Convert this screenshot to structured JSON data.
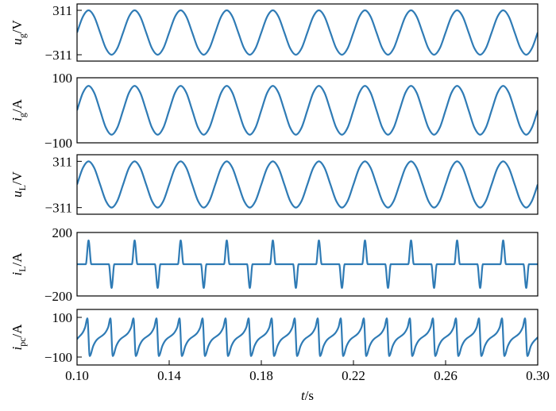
{
  "chart_data": [
    {
      "type": "line",
      "color": "#2f7bb5",
      "ylabel": {
        "symbol": "u",
        "subscript": "g",
        "unit": "/V"
      },
      "xlim": [
        0.1,
        0.3
      ],
      "ylim": [
        -400,
        400
      ],
      "yticks": [
        311,
        {
          "value": -311,
          "label": "−311"
        }
      ],
      "x": [
        0.1,
        0.1025,
        0.105,
        0.1075,
        0.11,
        0.1125,
        0.115,
        0.1175,
        0.12,
        0.1225,
        0.125,
        0.1275,
        0.13,
        0.1325,
        0.135,
        0.1375,
        0.14,
        0.1425,
        0.145,
        0.1475,
        0.15,
        0.1525,
        0.155,
        0.1575,
        0.16,
        0.1625,
        0.165,
        0.1675,
        0.17,
        0.1725,
        0.175,
        0.1775,
        0.18,
        0.1825,
        0.185,
        0.1875,
        0.19,
        0.1925,
        0.195,
        0.1975,
        0.2,
        0.2025,
        0.205,
        0.2075,
        0.21,
        0.2125,
        0.215,
        0.2175,
        0.22,
        0.2225,
        0.225,
        0.2275,
        0.23,
        0.2325,
        0.235,
        0.2375,
        0.24,
        0.2425,
        0.245,
        0.2475,
        0.25,
        0.2525,
        0.255,
        0.2575,
        0.26,
        0.2625,
        0.265,
        0.2675,
        0.27,
        0.2725,
        0.275,
        0.2775,
        0.28,
        0.2825,
        0.285,
        0.2875,
        0.29,
        0.2925,
        0.295,
        0.2975,
        0.3
      ],
      "values": [
        0,
        219.9,
        311,
        219.9,
        0,
        -219.9,
        -311,
        -219.9,
        0,
        219.9,
        311,
        219.9,
        0,
        -219.9,
        -311,
        -219.9,
        0,
        219.9,
        311,
        219.9,
        0,
        -219.9,
        -311,
        -219.9,
        0,
        219.9,
        311,
        219.9,
        0,
        -219.9,
        -311,
        -219.9,
        0,
        219.9,
        311,
        219.9,
        0,
        -219.9,
        -311,
        -219.9,
        0,
        219.9,
        311,
        219.9,
        0,
        -219.9,
        -311,
        -219.9,
        0,
        219.9,
        311,
        219.9,
        0,
        -219.9,
        -311,
        -219.9,
        0,
        219.9,
        311,
        219.9,
        0,
        -219.9,
        -311,
        -219.9,
        0,
        219.9,
        311,
        219.9,
        0,
        -219.9,
        -311,
        -219.9,
        0,
        219.9,
        311,
        219.9,
        0,
        -219.9,
        -311,
        -219.9,
        0
      ]
    },
    {
      "type": "line",
      "color": "#2f7bb5",
      "ylabel": {
        "symbol": "i",
        "subscript": "g",
        "unit": "/A"
      },
      "xlim": [
        0.1,
        0.3
      ],
      "ylim": [
        -100,
        100
      ],
      "yticks": [
        100,
        {
          "value": -100,
          "label": "−100"
        }
      ],
      "x": [
        0.1,
        0.1025,
        0.105,
        0.1075,
        0.11,
        0.1125,
        0.115,
        0.1175,
        0.12,
        0.1225,
        0.125,
        0.1275,
        0.13,
        0.1325,
        0.135,
        0.1375,
        0.14,
        0.1425,
        0.145,
        0.1475,
        0.15,
        0.1525,
        0.155,
        0.1575,
        0.16,
        0.1625,
        0.165,
        0.1675,
        0.17,
        0.1725,
        0.175,
        0.1775,
        0.18,
        0.1825,
        0.185,
        0.1875,
        0.19,
        0.1925,
        0.195,
        0.1975,
        0.2,
        0.2025,
        0.205,
        0.2075,
        0.21,
        0.2125,
        0.215,
        0.2175,
        0.22,
        0.2225,
        0.225,
        0.2275,
        0.23,
        0.2325,
        0.235,
        0.2375,
        0.24,
        0.2425,
        0.245,
        0.2475,
        0.25,
        0.2525,
        0.255,
        0.2575,
        0.26,
        0.2625,
        0.265,
        0.2675,
        0.27,
        0.2725,
        0.275,
        0.2775,
        0.28,
        0.2825,
        0.285,
        0.2875,
        0.29,
        0.2925,
        0.295,
        0.2975,
        0.3
      ],
      "values": [
        0,
        53,
        75,
        53,
        0,
        -53,
        -75,
        -53,
        0,
        53,
        75,
        53,
        0,
        -53,
        -75,
        -53,
        0,
        53,
        75,
        53,
        0,
        -53,
        -75,
        -53,
        0,
        53,
        75,
        53,
        0,
        -53,
        -75,
        -53,
        0,
        53,
        75,
        53,
        0,
        -53,
        -75,
        -53,
        0,
        53,
        75,
        53,
        0,
        -53,
        -75,
        -53,
        0,
        53,
        75,
        53,
        0,
        -53,
        -75,
        -53,
        0,
        53,
        75,
        53,
        0,
        -53,
        -75,
        -53,
        0,
        53,
        75,
        53,
        0,
        -53,
        -75,
        -53,
        0,
        53,
        75,
        53,
        0,
        -53,
        -75,
        -53,
        0
      ]
    },
    {
      "type": "line",
      "color": "#2f7bb5",
      "ylabel": {
        "symbol": "u",
        "subscript": "L",
        "unit": "/V"
      },
      "xlim": [
        0.1,
        0.3
      ],
      "ylim": [
        -400,
        400
      ],
      "yticks": [
        311,
        {
          "value": -311,
          "label": "−311"
        }
      ],
      "x": [
        0.1,
        0.1025,
        0.105,
        0.1075,
        0.11,
        0.1125,
        0.115,
        0.1175,
        0.12,
        0.1225,
        0.125,
        0.1275,
        0.13,
        0.1325,
        0.135,
        0.1375,
        0.14,
        0.1425,
        0.145,
        0.1475,
        0.15,
        0.1525,
        0.155,
        0.1575,
        0.16,
        0.1625,
        0.165,
        0.1675,
        0.17,
        0.1725,
        0.175,
        0.1775,
        0.18,
        0.1825,
        0.185,
        0.1875,
        0.19,
        0.1925,
        0.195,
        0.1975,
        0.2,
        0.2025,
        0.205,
        0.2075,
        0.21,
        0.2125,
        0.215,
        0.2175,
        0.22,
        0.2225,
        0.225,
        0.2275,
        0.23,
        0.2325,
        0.235,
        0.2375,
        0.24,
        0.2425,
        0.245,
        0.2475,
        0.25,
        0.2525,
        0.255,
        0.2575,
        0.26,
        0.2625,
        0.265,
        0.2675,
        0.27,
        0.2725,
        0.275,
        0.2775,
        0.28,
        0.2825,
        0.285,
        0.2875,
        0.29,
        0.2925,
        0.295,
        0.2975,
        0.3
      ],
      "values": [
        0,
        219.9,
        311,
        219.9,
        0,
        -219.9,
        -311,
        -219.9,
        0,
        219.9,
        311,
        219.9,
        0,
        -219.9,
        -311,
        -219.9,
        0,
        219.9,
        311,
        219.9,
        0,
        -219.9,
        -311,
        -219.9,
        0,
        219.9,
        311,
        219.9,
        0,
        -219.9,
        -311,
        -219.9,
        0,
        219.9,
        311,
        219.9,
        0,
        -219.9,
        -311,
        -219.9,
        0,
        219.9,
        311,
        219.9,
        0,
        -219.9,
        -311,
        -219.9,
        0,
        219.9,
        311,
        219.9,
        0,
        -219.9,
        -311,
        -219.9,
        0,
        219.9,
        311,
        219.9,
        0,
        -219.9,
        -311,
        -219.9,
        0,
        219.9,
        311,
        219.9,
        0,
        -219.9,
        -311,
        -219.9,
        0,
        219.9,
        311,
        219.9,
        0,
        -219.9,
        -311,
        -219.9,
        0
      ]
    },
    {
      "type": "line",
      "color": "#2f7bb5",
      "ylabel": {
        "symbol": "i",
        "subscript": "L",
        "unit": "/A"
      },
      "xlim": [
        0.1,
        0.3
      ],
      "ylim": [
        -200,
        200
      ],
      "yticks": [
        200,
        {
          "value": -200,
          "label": "−200"
        }
      ],
      "x": [
        0.1,
        0.1038,
        0.105,
        0.1062,
        0.1138,
        0.115,
        0.1162,
        0.1238,
        0.125,
        0.1262,
        0.1338,
        0.135,
        0.1362,
        0.1438,
        0.145,
        0.1462,
        0.1538,
        0.155,
        0.1562,
        0.1638,
        0.165,
        0.1662,
        0.1738,
        0.175,
        0.1762,
        0.1838,
        0.185,
        0.1862,
        0.1938,
        0.195,
        0.1962,
        0.2038,
        0.205,
        0.2062,
        0.2138,
        0.215,
        0.2162,
        0.2238,
        0.225,
        0.2262,
        0.2338,
        0.235,
        0.2362,
        0.2438,
        0.245,
        0.2462,
        0.2538,
        0.255,
        0.2562,
        0.2638,
        0.265,
        0.2662,
        0.2738,
        0.275,
        0.2762,
        0.2838,
        0.285,
        0.2862,
        0.2938,
        0.295,
        0.2962,
        0.3
      ],
      "values": [
        0,
        0,
        150,
        0,
        0,
        -150,
        0,
        0,
        150,
        0,
        0,
        -150,
        0,
        0,
        150,
        0,
        0,
        -150,
        0,
        0,
        150,
        0,
        0,
        -150,
        0,
        0,
        150,
        0,
        0,
        -150,
        0,
        0,
        150,
        0,
        0,
        -150,
        0,
        0,
        150,
        0,
        0,
        -150,
        0,
        0,
        150,
        0,
        0,
        -150,
        0,
        0,
        150,
        0,
        0,
        -150,
        0,
        0,
        150,
        0,
        0,
        -150,
        0,
        0
      ]
    },
    {
      "type": "line",
      "color": "#2f7bb5",
      "ylabel": {
        "symbol": "i",
        "subscript": "pc",
        "unit": "/A"
      },
      "xlabel": {
        "symbol": "t",
        "unit": "/s"
      },
      "xlim": [
        0.1,
        0.3
      ],
      "ylim": [
        -140,
        140
      ],
      "yticks": [
        100,
        {
          "value": -100,
          "label": "−100"
        }
      ],
      "xticks": [
        {
          "value": 0.1,
          "label": "0.10"
        },
        0.14,
        0.18,
        0.22,
        0.26,
        {
          "value": 0.3,
          "label": "0.30"
        }
      ],
      "x": [
        0.1,
        0.1035,
        0.1045,
        0.1055,
        0.107,
        0.1135,
        0.1145,
        0.1155,
        0.117,
        0.1235,
        0.1245,
        0.1255,
        0.127,
        0.1335,
        0.1345,
        0.1355,
        0.137,
        0.1435,
        0.1445,
        0.1455,
        0.147,
        0.1535,
        0.1545,
        0.1555,
        0.157,
        0.1635,
        0.1645,
        0.1655,
        0.167,
        0.1735,
        0.1745,
        0.1755,
        0.177,
        0.1835,
        0.1845,
        0.1855,
        0.187,
        0.1935,
        0.1945,
        0.1955,
        0.197,
        0.2035,
        0.2045,
        0.2055,
        0.207,
        0.2135,
        0.2145,
        0.2155,
        0.217,
        0.2235,
        0.2245,
        0.2255,
        0.227,
        0.2335,
        0.2345,
        0.2355,
        0.237,
        0.2435,
        0.2445,
        0.2455,
        0.247,
        0.2535,
        0.2545,
        0.2555,
        0.257,
        0.2635,
        0.2645,
        0.2655,
        0.267,
        0.2735,
        0.2745,
        0.2755,
        0.277,
        0.2835,
        0.2845,
        0.2855,
        0.287,
        0.2935,
        0.2945,
        0.2955,
        0.297,
        0.3
      ],
      "values": [
        -10,
        50,
        95,
        -95,
        -45,
        50,
        95,
        -95,
        -45,
        50,
        95,
        -95,
        -45,
        50,
        95,
        -95,
        -45,
        50,
        95,
        -95,
        -45,
        50,
        95,
        -95,
        -45,
        50,
        95,
        -95,
        -45,
        50,
        95,
        -95,
        -45,
        50,
        95,
        -95,
        -45,
        50,
        95,
        -95,
        -45,
        50,
        95,
        -95,
        -45,
        50,
        95,
        -95,
        -45,
        50,
        95,
        -95,
        -45,
        50,
        95,
        -95,
        -45,
        50,
        95,
        -95,
        -45,
        50,
        95,
        -95,
        -45,
        50,
        95,
        -95,
        -45,
        50,
        95,
        -95,
        -45,
        50,
        95,
        -95,
        -45,
        50,
        95,
        -95,
        -45,
        0
      ]
    }
  ]
}
